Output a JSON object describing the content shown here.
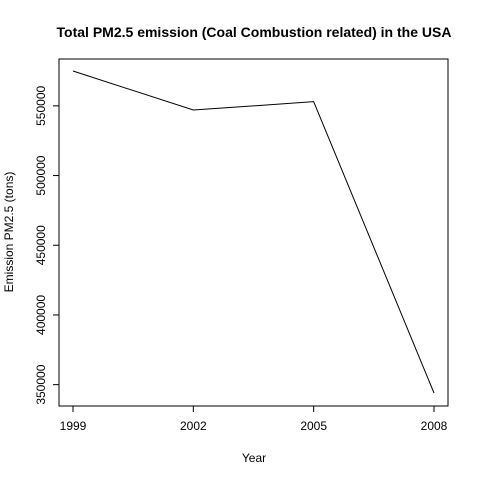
{
  "chart_data": {
    "type": "line",
    "title": "Total PM2.5 emission (Coal Combustion related) in the USA",
    "xlabel": "Year",
    "ylabel": "Emission PM2.5 (tons)",
    "x": [
      1999,
      2002,
      2005,
      2008
    ],
    "x_tick_labels": [
      "1999",
      "2002",
      "2005",
      "2008"
    ],
    "values": [
      575000,
      547000,
      553000,
      344000
    ],
    "y_ticks": [
      350000,
      400000,
      450000,
      500000,
      550000
    ],
    "y_tick_labels": [
      "350000",
      "400000",
      "450000",
      "500000",
      "550000"
    ],
    "xlim": [
      1999,
      2008
    ],
    "ylim": [
      344000,
      575000
    ],
    "grid": false,
    "line_color": "#000000"
  }
}
